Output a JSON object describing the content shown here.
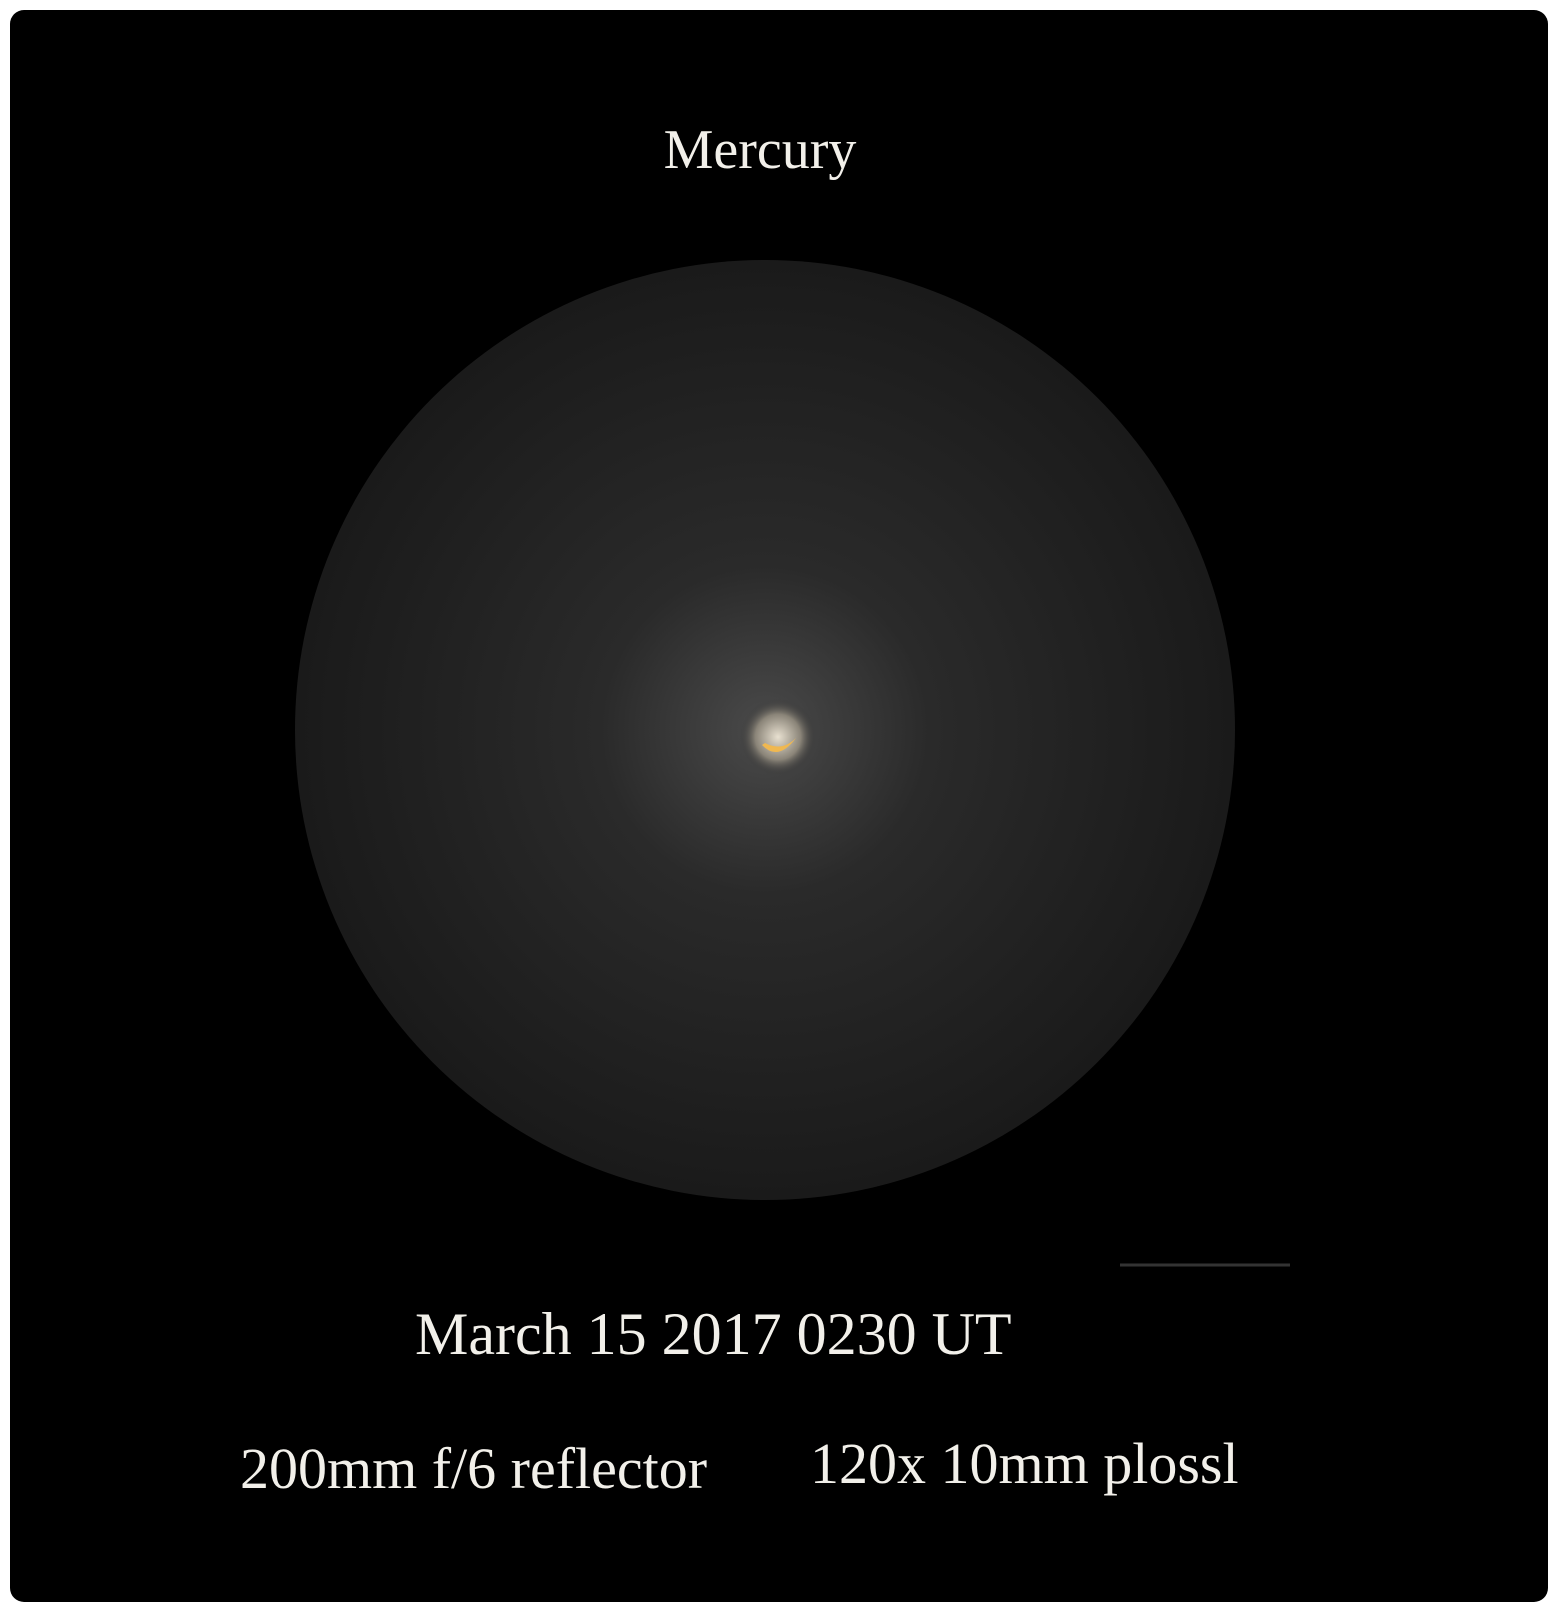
{
  "title": "Mercury",
  "date": "March 15 2017 0230 UT",
  "equipment": {
    "telescope": "200mm f/6 reflector",
    "eyepiece": "120x 10mm plossl"
  }
}
